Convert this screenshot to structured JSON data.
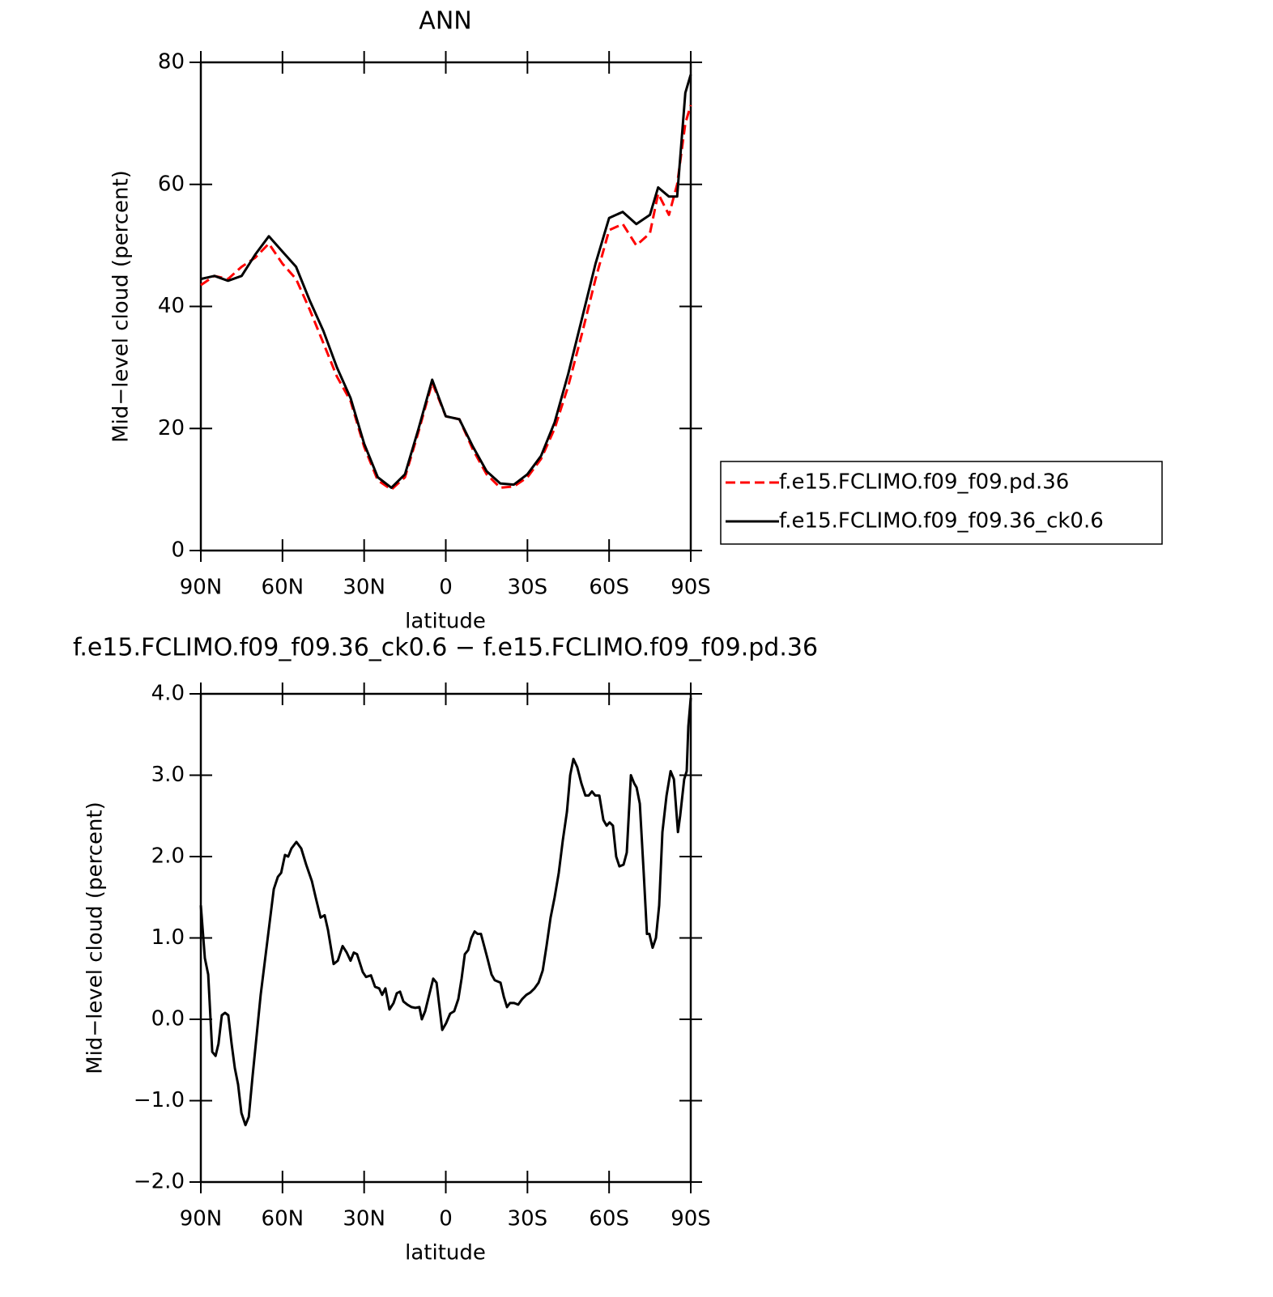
{
  "chart_data": [
    {
      "type": "line",
      "title": "ANN",
      "xlabel": "latitude",
      "ylabel": "Mid−level cloud (percent)",
      "x": [
        90,
        85,
        80,
        75,
        70,
        65,
        60,
        55,
        50,
        45,
        40,
        35,
        30,
        25,
        20,
        15,
        10,
        5,
        0,
        -5,
        -10,
        -15,
        -20,
        -25,
        -30,
        -35,
        -40,
        -45,
        -50,
        -55,
        -60,
        -65,
        -70,
        -75,
        -78,
        -82,
        -85,
        -88,
        -90
      ],
      "series": [
        {
          "name": "f.e15.FCLIMO.f09_f09.pd.36",
          "color": "#ff0000",
          "dash": "dashed",
          "values": [
            43.5,
            45,
            44.5,
            46.5,
            48,
            50.3,
            47,
            44.5,
            39.5,
            34,
            28.5,
            24.5,
            17,
            11.5,
            10,
            12,
            19.5,
            27.5,
            22,
            21.5,
            16.5,
            12.5,
            10.3,
            10.5,
            12,
            15,
            20,
            27,
            35.5,
            44.5,
            52.5,
            53.5,
            50,
            52,
            58.5,
            55,
            60,
            70,
            73
          ]
        },
        {
          "name": "f.e15.FCLIMO.f09_f09.36_ck0.6",
          "color": "#000000",
          "dash": "solid",
          "values": [
            44.5,
            45,
            44.2,
            45,
            48.5,
            51.5,
            49,
            46.5,
            41,
            36,
            30,
            25,
            17.5,
            12,
            10.3,
            12.5,
            20,
            28,
            22,
            21.5,
            17,
            13,
            11,
            10.8,
            12.5,
            15.5,
            21,
            29,
            38,
            47,
            54.5,
            55.5,
            53.5,
            55,
            59.5,
            58,
            58,
            75,
            78
          ]
        }
      ],
      "xlim": [
        90,
        -90
      ],
      "xticks": [
        {
          "value": 90,
          "label": "90N"
        },
        {
          "value": 60,
          "label": "60N"
        },
        {
          "value": 30,
          "label": "30N"
        },
        0,
        {
          "value": -30,
          "label": "30S"
        },
        {
          "value": -60,
          "label": "60S"
        },
        {
          "value": -90,
          "label": "90S"
        }
      ],
      "ylim": [
        0,
        80
      ],
      "yticks": [
        0,
        20,
        40,
        60,
        80
      ],
      "legend": "right"
    },
    {
      "type": "line",
      "title": "f.e15.FCLIMO.f09_f09.36_ck0.6 − f.e15.FCLIMO.f09_f09.pd.36",
      "xlabel": "latitude",
      "ylabel": "Mid−level cloud (percent)",
      "x": [
        90,
        88.5,
        87.3,
        85.8,
        84.6,
        83.5,
        82.3,
        81.1,
        79.9,
        78.7,
        77.5,
        76.3,
        75.1,
        73.6,
        72.4,
        71.0,
        69.5,
        68.0,
        65.6,
        63.2,
        61.7,
        60.5,
        59.1,
        57.9,
        56.7,
        54.9,
        53.1,
        51.3,
        49.2,
        47.8,
        46.0,
        44.5,
        43.3,
        41.2,
        39.7,
        37.9,
        36.4,
        35.0,
        33.8,
        32.6,
        30.5,
        29.3,
        27.5,
        26.0,
        24.5,
        23.4,
        22.2,
        20.7,
        19.2,
        18.0,
        16.8,
        15.6,
        14.1,
        12.6,
        11.2,
        9.7,
        8.8,
        7.6,
        6.1,
        4.6,
        3.4,
        2.5,
        1.3,
        -0.1,
        -1.6,
        -3.1,
        -4.6,
        -5.8,
        -7.0,
        -8.2,
        -9.4,
        -10.6,
        -11.7,
        -12.9,
        -14.1,
        -15.3,
        -16.8,
        -18.0,
        -20.1,
        -21.3,
        -22.5,
        -23.6,
        -25.1,
        -26.6,
        -28.1,
        -29.6,
        -31.1,
        -32.6,
        -34.1,
        -35.6,
        -37.0,
        -38.5,
        -40.0,
        -41.5,
        -43.0,
        -44.5,
        -45.7,
        -46.9,
        -48.3,
        -49.8,
        -51.3,
        -52.5,
        -53.7,
        -54.9,
        -56.4,
        -57.9,
        -59.1,
        -60.2,
        -61.4,
        -62.6,
        -63.8,
        -65.3,
        -66.5,
        -68.0,
        -69.2,
        -70.1,
        -71.3,
        -72.7,
        -73.9,
        -74.8,
        -76.0,
        -77.2,
        -78.4,
        -79.6,
        -81.1,
        -82.6,
        -83.8,
        -85.3,
        -86.1,
        -87.6,
        -88.5,
        -89.1,
        -90
      ],
      "color": "#000000",
      "values": [
        1.4,
        0.75,
        0.55,
        -0.4,
        -0.45,
        -0.3,
        0.05,
        0.08,
        0.05,
        -0.3,
        -0.6,
        -0.8,
        -1.15,
        -1.3,
        -1.2,
        -0.7,
        -0.2,
        0.3,
        0.95,
        1.6,
        1.75,
        1.8,
        2.02,
        2.0,
        2.1,
        2.18,
        2.1,
        1.9,
        1.7,
        1.5,
        1.25,
        1.28,
        1.1,
        0.68,
        0.72,
        0.9,
        0.82,
        0.72,
        0.82,
        0.8,
        0.58,
        0.52,
        0.54,
        0.4,
        0.38,
        0.3,
        0.38,
        0.12,
        0.2,
        0.32,
        0.34,
        0.22,
        0.18,
        0.15,
        0.14,
        0.15,
        0.0,
        0.1,
        0.3,
        0.5,
        0.45,
        0.2,
        -0.13,
        -0.05,
        0.07,
        0.1,
        0.25,
        0.5,
        0.8,
        0.85,
        1.0,
        1.08,
        1.05,
        1.05,
        0.9,
        0.75,
        0.55,
        0.48,
        0.45,
        0.28,
        0.15,
        0.2,
        0.2,
        0.18,
        0.25,
        0.3,
        0.33,
        0.38,
        0.45,
        0.6,
        0.9,
        1.25,
        1.5,
        1.8,
        2.2,
        2.55,
        3.0,
        3.2,
        3.1,
        2.9,
        2.75,
        2.75,
        2.8,
        2.75,
        2.75,
        2.45,
        2.38,
        2.42,
        2.38,
        2.0,
        1.88,
        1.9,
        2.05,
        3.0,
        2.9,
        2.85,
        2.65,
        1.8,
        1.05,
        1.05,
        0.88,
        1.0,
        1.4,
        2.3,
        2.75,
        3.05,
        2.95,
        2.3,
        2.5,
        2.95,
        3.05,
        3.6,
        3.95
      ],
      "xlim": [
        90,
        -90
      ],
      "xticks": [
        {
          "value": 90,
          "label": "90N"
        },
        {
          "value": 60,
          "label": "60N"
        },
        {
          "value": 30,
          "label": "30N"
        },
        0,
        {
          "value": -30,
          "label": "30S"
        },
        {
          "value": -60,
          "label": "60S"
        },
        {
          "value": -90,
          "label": "90S"
        }
      ],
      "ylim": [
        -2,
        4
      ],
      "yticks": [
        {
          "value": -2,
          "label": "−2.0"
        },
        {
          "value": -1,
          "label": "−1.0"
        },
        {
          "value": 0,
          "label": "0.0"
        },
        {
          "value": 1,
          "label": "1.0"
        },
        {
          "value": 2,
          "label": "2.0"
        },
        {
          "value": 3,
          "label": "3.0"
        },
        {
          "value": 4,
          "label": "4.0"
        }
      ]
    }
  ]
}
